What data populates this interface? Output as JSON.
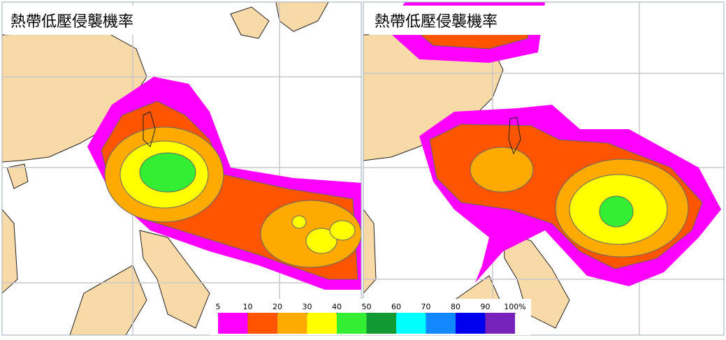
{
  "panels": [
    {
      "title": "熱帶低壓侵襲機率"
    },
    {
      "title": "熱帶低壓侵襲機率"
    }
  ],
  "legend": {
    "ticks": [
      5,
      10,
      20,
      30,
      40,
      50,
      60,
      70,
      80,
      90,
      {
        "value": 100,
        "label": "100%"
      }
    ],
    "colors": [
      "#ff00ff",
      "#ff5500",
      "#ffaa00",
      "#ffff00",
      "#33ee33",
      "#119933",
      "#00ffff",
      "#1188ff",
      "#0000ee",
      "#7722bb"
    ]
  }
}
